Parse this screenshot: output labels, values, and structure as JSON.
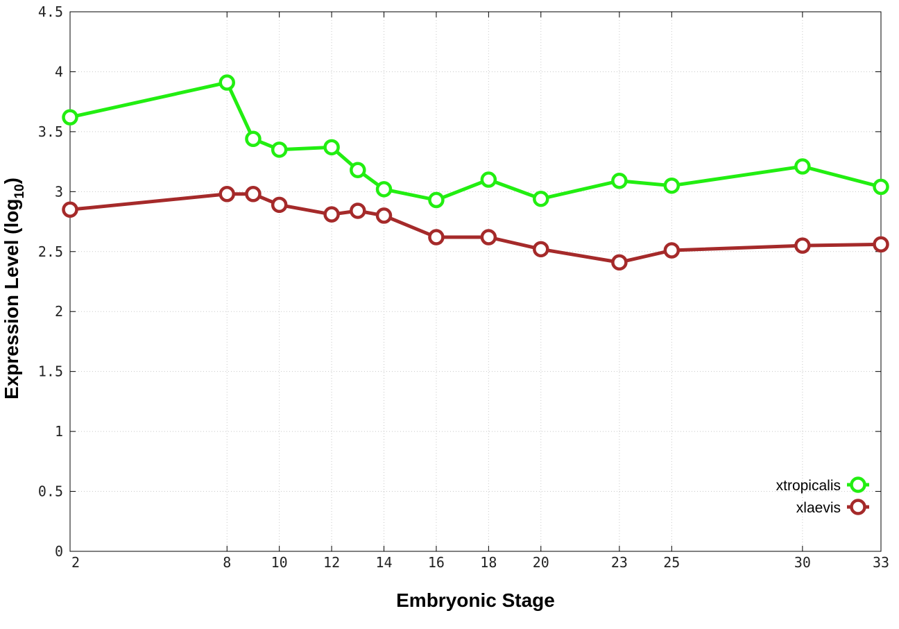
{
  "chart_data": {
    "type": "line",
    "title": "",
    "xlabel": "Embryonic Stage",
    "ylabel": {
      "main": "Expression Level (log",
      "sub": "10",
      "close": ")"
    },
    "x": [
      2,
      8,
      9,
      10,
      12,
      13,
      14,
      16,
      18,
      20,
      23,
      25,
      30,
      33
    ],
    "x_ticks": [
      2,
      8,
      10,
      12,
      14,
      16,
      18,
      20,
      23,
      25,
      30,
      33
    ],
    "y_ticks": [
      "0",
      "0.5",
      "1",
      "1.5",
      "2",
      "2.5",
      "3",
      "3.5",
      "4",
      "4.5"
    ],
    "xlim": [
      2,
      33
    ],
    "ylim": [
      0,
      4.5
    ],
    "grid": true,
    "legend_position": "bottom-right",
    "series": [
      {
        "name": "xtropicalis",
        "color": "#22ee11",
        "values": [
          3.62,
          3.91,
          3.44,
          3.35,
          3.37,
          3.18,
          3.02,
          2.93,
          3.1,
          2.94,
          3.09,
          3.05,
          3.21,
          3.04
        ]
      },
      {
        "name": "xlaevis",
        "color": "#a52a2a",
        "values": [
          2.85,
          2.98,
          2.98,
          2.89,
          2.81,
          2.84,
          2.8,
          2.62,
          2.62,
          2.52,
          2.41,
          2.51,
          2.55,
          2.56
        ]
      }
    ]
  }
}
